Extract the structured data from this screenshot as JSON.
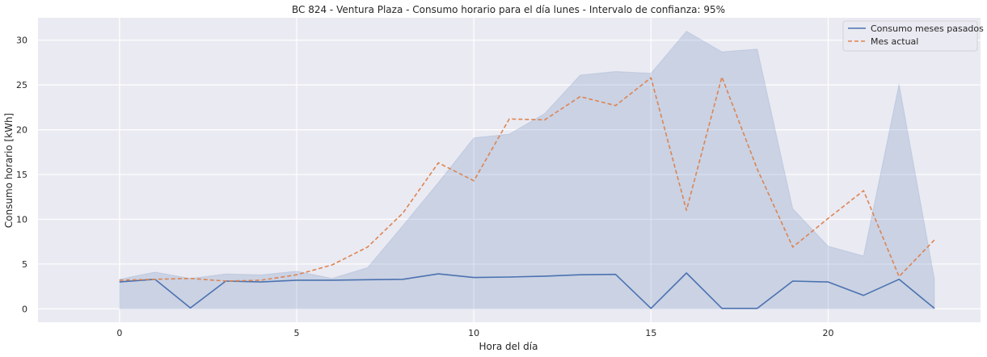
{
  "chart_data": {
    "type": "line",
    "title": "BC 824 - Ventura Plaza - Consumo horario para el día lunes - Intervalo de confianza: 95%",
    "xlabel": "Hora del día",
    "ylabel": "Consumo horario [kWh]",
    "xlim": [
      -2.3,
      24.3
    ],
    "ylim": [
      -1.5,
      32.5
    ],
    "xticks": [
      0,
      5,
      10,
      15,
      20
    ],
    "yticks": [
      0,
      5,
      10,
      15,
      20,
      25,
      30
    ],
    "grid": true,
    "legend_position": "top-right",
    "x": [
      0,
      1,
      2,
      3,
      4,
      5,
      6,
      7,
      8,
      9,
      10,
      11,
      12,
      13,
      14,
      15,
      16,
      17,
      18,
      19,
      20,
      21,
      22,
      23
    ],
    "series": [
      {
        "name": "Consumo meses pasados",
        "color": "#4c72b0",
        "style": "solid",
        "values": [
          3.0,
          3.3,
          0.1,
          3.1,
          3.0,
          3.2,
          3.2,
          3.25,
          3.3,
          3.9,
          3.5,
          3.55,
          3.65,
          3.8,
          3.85,
          0.05,
          4.0,
          0.05,
          0.05,
          3.1,
          3.0,
          1.5,
          3.3,
          0.05
        ]
      },
      {
        "name": "Mes actual",
        "color": "#dd8452",
        "style": "dashed",
        "values": [
          3.2,
          3.3,
          3.4,
          3.1,
          3.2,
          3.8,
          4.9,
          6.9,
          10.7,
          16.3,
          14.3,
          21.2,
          21.1,
          23.7,
          22.7,
          25.8,
          11.0,
          25.9,
          15.6,
          6.9,
          10.1,
          13.2,
          3.6,
          7.7
        ]
      }
    ],
    "confidence_band": {
      "series": "Consumo meses pasados",
      "color": "#4c72b0",
      "lower": [
        0,
        0,
        0,
        0,
        0,
        0,
        0,
        0,
        0,
        0,
        0,
        0,
        0,
        0,
        0,
        0,
        0,
        0,
        0,
        0,
        0,
        0,
        0,
        0
      ],
      "upper": [
        3.3,
        4.1,
        3.4,
        3.9,
        3.8,
        4.2,
        3.4,
        4.6,
        9.3,
        14.1,
        19.1,
        19.5,
        21.8,
        26.1,
        26.5,
        26.3,
        31.0,
        28.7,
        29.0,
        11.2,
        7.0,
        5.9,
        25.1,
        3.3
      ]
    }
  }
}
